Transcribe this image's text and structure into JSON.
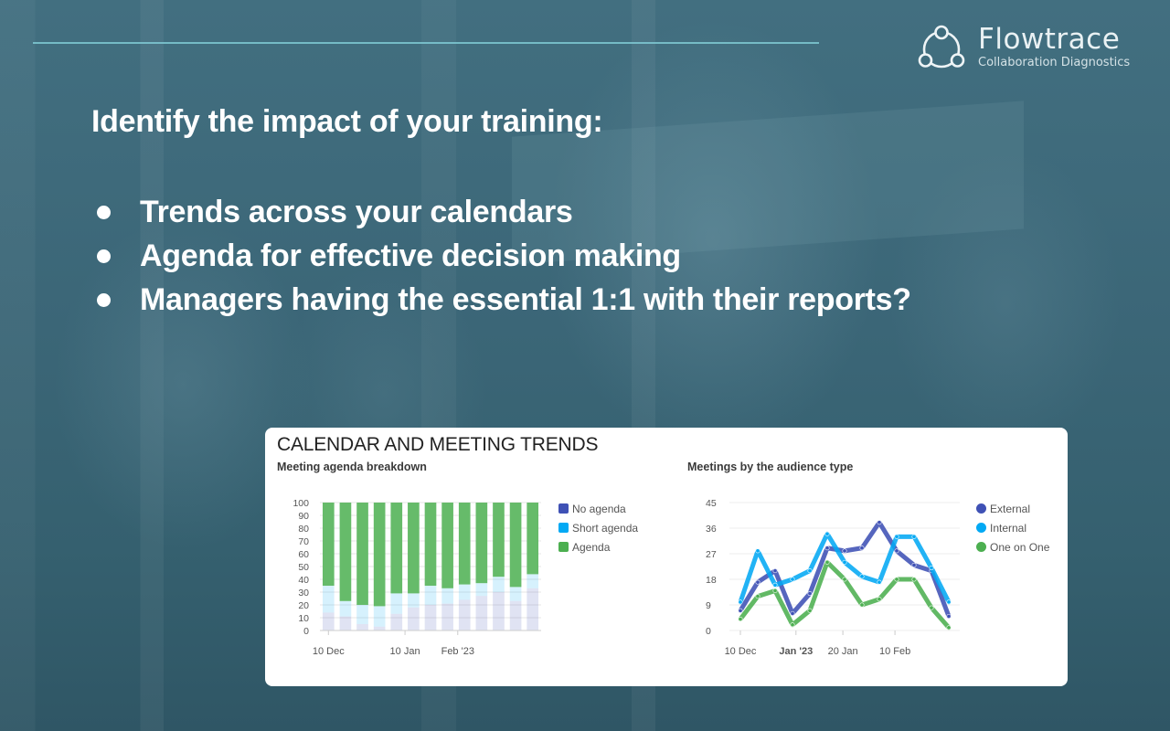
{
  "brand": {
    "name": "Flowtrace",
    "tagline": "Collaboration Diagnostics"
  },
  "slide": {
    "headline": "Identify the impact of your training:",
    "bullets": [
      "Trends across your calendars",
      "Agenda for effective decision making",
      "Managers having the essential 1:1 with their reports?"
    ]
  },
  "card": {
    "title": "CALENDAR AND MEETING TRENDS"
  },
  "colors": {
    "background": "#3d6a7b",
    "accent_line": "#7fc9d2",
    "no_agenda": "#3f51b5",
    "short_agenda": "#03a9f4",
    "agenda": "#4caf50",
    "external": "#3f51b5",
    "internal": "#03a9f4",
    "one_on_one": "#4caf50"
  },
  "chart_data": [
    {
      "type": "bar",
      "stacked": true,
      "title": "Meeting agenda breakdown",
      "xlabel": "",
      "ylabel": "",
      "ylim": [
        0,
        100
      ],
      "yticks": [
        0,
        10,
        20,
        30,
        40,
        50,
        60,
        70,
        80,
        90,
        100
      ],
      "xtick_labels": [
        "10 Dec",
        "10 Jan",
        "Feb '23"
      ],
      "xtick_positions": [
        1,
        5.5,
        8.6
      ],
      "grid": true,
      "legend_position": "right",
      "categories": [
        "1",
        "2",
        "3",
        "4",
        "5",
        "6",
        "7",
        "8",
        "9",
        "10",
        "11",
        "12",
        "13"
      ],
      "series": [
        {
          "name": "No agenda",
          "values": [
            14,
            11,
            5,
            3,
            13,
            18,
            20,
            21,
            24,
            27,
            30,
            23,
            33
          ]
        },
        {
          "name": "Short agenda",
          "values": [
            21,
            12,
            15,
            16,
            16,
            11,
            15,
            12,
            12,
            10,
            12,
            11,
            11
          ]
        },
        {
          "name": "Agenda",
          "values": [
            65,
            77,
            80,
            81,
            71,
            71,
            65,
            67,
            64,
            63,
            58,
            66,
            56
          ]
        }
      ]
    },
    {
      "type": "line",
      "title": "Meetings by the audience type",
      "xlabel": "",
      "ylabel": "",
      "ylim": [
        0,
        45
      ],
      "yticks": [
        0,
        9,
        18,
        27,
        36,
        45
      ],
      "xtick_labels": [
        "10 Dec",
        "Jan '23",
        "20 Jan",
        "10 Feb"
      ],
      "xtick_positions": [
        1,
        4.2,
        6.9,
        9.9
      ],
      "grid": true,
      "legend_position": "right",
      "x": [
        1,
        2,
        3,
        4,
        5,
        6,
        7,
        8,
        9,
        10,
        11,
        12,
        13
      ],
      "series": [
        {
          "name": "External",
          "values": [
            7,
            17,
            21,
            6,
            13,
            29,
            28,
            29,
            38,
            28,
            23,
            21,
            5
          ]
        },
        {
          "name": "Internal",
          "values": [
            10,
            28,
            16,
            18,
            21,
            34,
            24,
            19,
            17,
            33,
            33,
            22,
            10
          ]
        },
        {
          "name": "One on One",
          "values": [
            4,
            12,
            14,
            2,
            7,
            24,
            18,
            9,
            11,
            18,
            18,
            8,
            1
          ]
        }
      ]
    }
  ]
}
